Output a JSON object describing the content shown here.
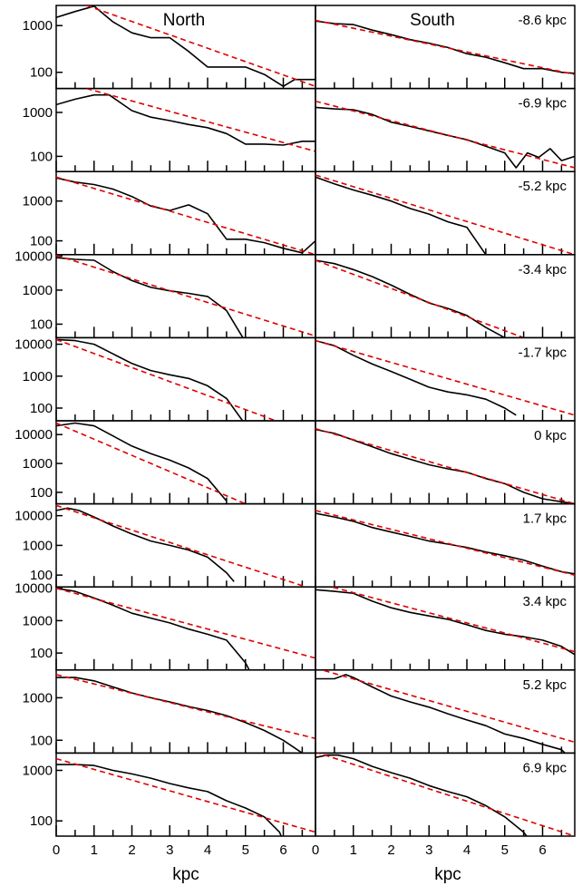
{
  "chart_data": {
    "type": "line",
    "xlabel": "kpc",
    "x_ticks": [
      0,
      1,
      2,
      3,
      4,
      5,
      6
    ],
    "xlim": [
      0,
      6.85
    ],
    "y_scale": "log",
    "side_titles": [
      "North",
      "South"
    ],
    "colors": {
      "profile": "#000000",
      "fit": "#e00000"
    },
    "rows": [
      {
        "label": "-8.6 kpc",
        "ylim": [
          45,
          2700
        ],
        "y_ticks": [
          100,
          1000
        ],
        "north": {
          "profile": {
            "x": [
              0,
              0.5,
              1,
              1.5,
              2,
              2.5,
              3,
              3.5,
              4,
              4.5,
              5,
              5.5,
              6,
              6.3,
              6.85
            ],
            "y": [
              1500,
              2000,
              2600,
              1200,
              700,
              550,
              550,
              280,
              130,
              130,
              130,
              90,
              50,
              70,
              70
            ]
          },
          "fit": {
            "x": [
              0.8,
              6.85
            ],
            "y": [
              2700,
              50
            ]
          }
        },
        "south": {
          "profile": {
            "x": [
              0,
              0.5,
              1,
              1.5,
              2,
              2.5,
              3,
              3.5,
              4,
              4.5,
              5,
              5.5,
              6,
              6.5,
              6.85
            ],
            "y": [
              1250,
              1100,
              1050,
              800,
              640,
              500,
              420,
              340,
              250,
              210,
              160,
              120,
              120,
              100,
              95
            ]
          },
          "fit": {
            "x": [
              0,
              6.85
            ],
            "y": [
              1300,
              90
            ]
          }
        }
      },
      {
        "label": "-6.9 kpc",
        "ylim": [
          45,
          3500
        ],
        "y_ticks": [
          100,
          1000
        ],
        "north": {
          "profile": {
            "x": [
              0,
              0.5,
              1,
              1.4,
              2,
              2.5,
              3,
              3.5,
              4,
              4.5,
              5,
              5.5,
              6,
              6.5,
              6.85
            ],
            "y": [
              1500,
              2000,
              2500,
              2500,
              1100,
              780,
              650,
              530,
              450,
              330,
              190,
              190,
              180,
              220,
              220
            ]
          },
          "fit": {
            "x": [
              0.8,
              6.85
            ],
            "y": [
              3500,
              130
            ]
          }
        },
        "south": {
          "profile": {
            "x": [
              0,
              0.5,
              1,
              1.5,
              2,
              2.5,
              3,
              3.5,
              4,
              4.5,
              5,
              5.3,
              5.6,
              5.9,
              6.2,
              6.5,
              6.85
            ],
            "y": [
              1300,
              1200,
              1150,
              900,
              600,
              480,
              380,
              300,
              240,
              170,
              120,
              55,
              120,
              95,
              150,
              80,
              100
            ]
          },
          "fit": {
            "x": [
              0,
              6.85
            ],
            "y": [
              1800,
              55
            ]
          }
        }
      },
      {
        "label": "-5.2 kpc",
        "ylim": [
          45,
          5500
        ],
        "y_ticks": [
          100,
          1000
        ],
        "north": {
          "profile": {
            "x": [
              0,
              0.5,
              1,
              1.5,
              2,
              2.5,
              3,
              3.5,
              4,
              4.5,
              5,
              5.5,
              6,
              6.5,
              6.85
            ],
            "y": [
              3800,
              3000,
              2600,
              2000,
              1300,
              750,
              580,
              800,
              480,
              110,
              110,
              90,
              65,
              50,
              100
            ]
          },
          "fit": {
            "x": [
              0,
              6.85
            ],
            "y": [
              4000,
              45
            ]
          }
        },
        "south": {
          "profile": {
            "x": [
              0,
              0.5,
              1,
              1.5,
              2,
              2.5,
              3,
              3.5,
              4,
              4.5,
              5,
              5.5
            ],
            "y": [
              4000,
              2700,
              1900,
              1400,
              1000,
              650,
              470,
              300,
              220,
              45,
              20,
              20
            ]
          },
          "fit": {
            "x": [
              0,
              6.85
            ],
            "y": [
              4500,
              45
            ]
          }
        }
      },
      {
        "label": "-3.4 kpc",
        "ylim": [
          40,
          11000
        ],
        "y_ticks": [
          100,
          1000,
          10000
        ],
        "north": {
          "profile": {
            "x": [
              0,
              0.5,
              1,
              1.5,
              2,
              2.5,
              3,
              3.5,
              4,
              4.5,
              5
            ],
            "y": [
              9000,
              8000,
              7500,
              3500,
              1900,
              1200,
              950,
              800,
              650,
              250,
              30
            ]
          },
          "fit": {
            "x": [
              0,
              6.85
            ],
            "y": [
              10500,
              45
            ]
          }
        },
        "south": {
          "profile": {
            "x": [
              0,
              0.5,
              1,
              1.5,
              2,
              2.5,
              3,
              3.5,
              4,
              4.5,
              5,
              5.3
            ],
            "y": [
              7500,
              6000,
              4000,
              2500,
              1400,
              750,
              420,
              290,
              180,
              80,
              40,
              30
            ]
          },
          "fit": {
            "x": [
              0,
              5.5
            ],
            "y": [
              7500,
              40
            ]
          }
        }
      },
      {
        "label": "-1.7 kpc",
        "ylim": [
          40,
          16000
        ],
        "y_ticks": [
          100,
          1000,
          10000
        ],
        "north": {
          "profile": {
            "x": [
              0,
              0.5,
              1,
              1.5,
              2,
              2.5,
              3,
              3.5,
              4,
              4.5,
              5
            ],
            "y": [
              14000,
              13000,
              10000,
              5000,
              2500,
              1500,
              1100,
              850,
              500,
              200,
              30
            ]
          },
          "fit": {
            "x": [
              0,
              5.8
            ],
            "y": [
              14000,
              40
            ]
          }
        },
        "south": {
          "profile": {
            "x": [
              0,
              0.5,
              1,
              1.5,
              2,
              2.5,
              3,
              3.5,
              4,
              4.5,
              5,
              5.3
            ],
            "y": [
              13000,
              9000,
              4500,
              2400,
              1400,
              800,
              450,
              320,
              260,
              190,
              100,
              60
            ]
          },
          "fit": {
            "x": [
              0,
              6.85
            ],
            "y": [
              13000,
              60
            ]
          }
        }
      },
      {
        "label": "0 kpc",
        "ylim": [
          40,
          30000
        ],
        "y_ticks": [
          100,
          1000,
          10000
        ],
        "north": {
          "profile": {
            "x": [
              0,
              0.5,
              1,
              1.5,
              2,
              2.5,
              3,
              3.5,
              4,
              4.5
            ],
            "y": [
              20000,
              25000,
              20000,
              9000,
              4000,
              2200,
              1300,
              700,
              300,
              50
            ]
          },
          "fit": {
            "x": [
              0,
              5.0
            ],
            "y": [
              25000,
              40
            ]
          }
        },
        "south": {
          "profile": {
            "x": [
              0,
              0.5,
              1,
              1.5,
              2,
              2.5,
              3,
              3.5,
              4,
              4.5,
              5,
              5.5,
              6,
              6.85
            ],
            "y": [
              15000,
              11000,
              6500,
              3800,
              2200,
              1400,
              900,
              650,
              500,
              300,
              200,
              100,
              60,
              40
            ]
          },
          "fit": {
            "x": [
              0,
              6.85
            ],
            "y": [
              16000,
              40
            ]
          }
        }
      },
      {
        "label": "1.7 kpc",
        "ylim": [
          40,
          25000
        ],
        "y_ticks": [
          100,
          1000,
          10000
        ],
        "north": {
          "profile": {
            "x": [
              0,
              0.3,
              0.6,
              1,
              1.5,
              2,
              2.5,
              3,
              3.5,
              4,
              4.5,
              4.7
            ],
            "y": [
              15000,
              18000,
              15000,
              9000,
              4500,
              2400,
              1400,
              1000,
              700,
              400,
              120,
              60
            ]
          },
          "fit": {
            "x": [
              0,
              6.6
            ],
            "y": [
              22000,
              40
            ]
          }
        },
        "south": {
          "profile": {
            "x": [
              0,
              0.5,
              1,
              1.5,
              2,
              2.5,
              3,
              3.5,
              4,
              4.5,
              5,
              5.5,
              6,
              6.5,
              6.85
            ],
            "y": [
              12000,
              9000,
              6500,
              4000,
              2800,
              2000,
              1400,
              1100,
              850,
              600,
              450,
              320,
              200,
              130,
              110
            ]
          },
          "fit": {
            "x": [
              0,
              6.85
            ],
            "y": [
              15000,
              100
            ]
          }
        }
      },
      {
        "label": "3.4 kpc",
        "ylim": [
          30,
          11000
        ],
        "y_ticks": [
          100,
          1000,
          10000
        ],
        "north": {
          "profile": {
            "x": [
              0,
              0.5,
              1,
              1.5,
              2,
              2.5,
              3,
              3.5,
              4,
              4.5,
              5,
              5.1
            ],
            "y": [
              10000,
              8000,
              5000,
              3000,
              1700,
              1200,
              850,
              550,
              380,
              250,
              50,
              30
            ]
          },
          "fit": {
            "x": [
              0,
              6.85
            ],
            "y": [
              10000,
              70
            ]
          }
        },
        "south": {
          "profile": {
            "x": [
              0,
              0.5,
              1,
              1.5,
              2,
              2.5,
              3,
              3.5,
              4,
              4.5,
              5,
              5.5,
              6,
              6.5,
              6.85
            ],
            "y": [
              9000,
              8000,
              7000,
              4000,
              2500,
              1800,
              1400,
              1100,
              750,
              500,
              380,
              320,
              250,
              160,
              90
            ]
          },
          "fit": {
            "x": [
              0,
              6.85
            ],
            "y": [
              15000,
              110
            ]
          }
        }
      },
      {
        "label": "5.2 kpc",
        "ylim": [
          50,
          4500
        ],
        "y_ticks": [
          100,
          1000
        ],
        "north": {
          "profile": {
            "x": [
              0,
              0.5,
              1,
              1.5,
              2,
              2.5,
              3,
              3.5,
              4,
              4.5,
              5,
              5.5,
              6,
              6.5
            ],
            "y": [
              3000,
              3000,
              2500,
              1800,
              1300,
              1000,
              800,
              620,
              500,
              380,
              260,
              170,
              100,
              50
            ]
          },
          "fit": {
            "x": [
              0,
              6.85
            ],
            "y": [
              3500,
              110
            ]
          }
        },
        "south": {
          "profile": {
            "x": [
              0,
              0.5,
              0.8,
              1,
              1.5,
              2,
              2.5,
              3,
              3.5,
              4,
              4.5,
              5,
              5.5,
              6,
              6.5,
              6.85
            ],
            "y": [
              2800,
              2800,
              3500,
              3000,
              1800,
              1100,
              800,
              600,
              420,
              300,
              220,
              140,
              110,
              80,
              60,
              30
            ]
          },
          "fit": {
            "x": [
              0,
              6.85
            ],
            "y": [
              5000,
              90
            ]
          }
        }
      },
      {
        "label": "6.9 kpc",
        "ylim": [
          50,
          2200
        ],
        "y_ticks": [
          100,
          1000
        ],
        "north": {
          "profile": {
            "x": [
              0,
              0.5,
              1,
              1.5,
              2,
              2.5,
              3,
              3.5,
              4,
              4.5,
              5,
              5.5,
              5.9,
              6
            ],
            "y": [
              1300,
              1300,
              1250,
              1000,
              850,
              700,
              550,
              450,
              380,
              250,
              180,
              120,
              60,
              40
            ]
          },
          "fit": {
            "x": [
              0,
              6.85
            ],
            "y": [
              1700,
              60
            ]
          }
        },
        "south": {
          "profile": {
            "x": [
              0,
              0.3,
              0.6,
              1,
              1.5,
              2,
              2.5,
              3,
              3.5,
              4,
              4.5,
              5,
              5.5,
              5.8
            ],
            "y": [
              1800,
              2000,
              2000,
              1700,
              1200,
              900,
              700,
              500,
              380,
              300,
              200,
              120,
              60,
              30
            ]
          },
          "fit": {
            "x": [
              0,
              6.85
            ],
            "y": [
              2300,
              50
            ]
          }
        }
      }
    ]
  }
}
